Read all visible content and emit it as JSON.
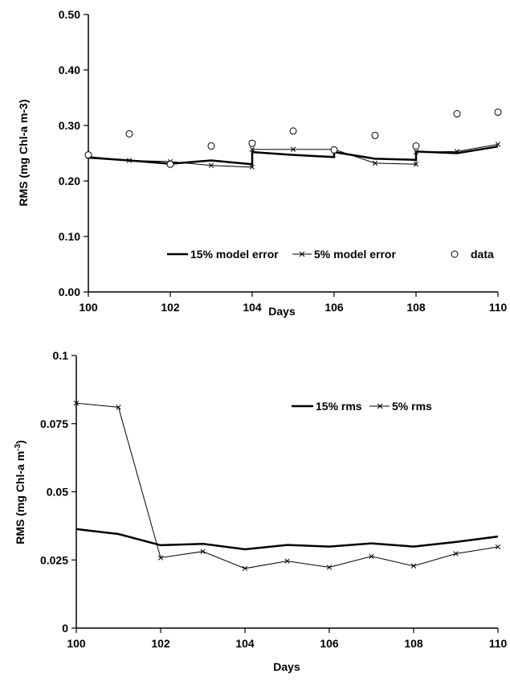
{
  "chart_data": [
    {
      "type": "line",
      "xlabel": "Days",
      "ylabel": "RMS (mg Chl-a m-3)",
      "xlim": [
        100,
        110
      ],
      "ylim": [
        0,
        0.5
      ],
      "x_ticks": [
        "100",
        "102",
        "104",
        "106",
        "108",
        "110"
      ],
      "y_ticks": [
        "0.00",
        "0.10",
        "0.20",
        "0.30",
        "0.40",
        "0.50"
      ],
      "legend": "bottom-right, inside plot",
      "series": [
        {
          "name": "15% model error",
          "style": "thick line",
          "points": [
            [
              100,
              0.242
            ],
            [
              101,
              0.237
            ],
            [
              102,
              0.231
            ],
            [
              103,
              0.237
            ],
            [
              104,
              0.23
            ],
            [
              104,
              0.252
            ],
            [
              105,
              0.247
            ],
            [
              106,
              0.243
            ],
            [
              106,
              0.252
            ],
            [
              107,
              0.24
            ],
            [
              108,
              0.238
            ],
            [
              108,
              0.253
            ],
            [
              109,
              0.25
            ],
            [
              110,
              0.262
            ]
          ]
        },
        {
          "name": "5% model error",
          "style": "thin line with x markers",
          "points": [
            [
              100,
              0.244
            ],
            [
              101,
              0.237
            ],
            [
              102,
              0.235
            ],
            [
              103,
              0.228
            ],
            [
              104,
              0.225
            ],
            [
              104,
              0.257
            ],
            [
              105,
              0.257
            ],
            [
              106,
              0.257
            ],
            [
              107,
              0.232
            ],
            [
              108,
              0.23
            ],
            [
              108,
              0.252
            ],
            [
              109,
              0.253
            ],
            [
              110,
              0.266
            ]
          ]
        },
        {
          "name": "data",
          "style": "open circle markers",
          "points": [
            [
              100,
              0.247
            ],
            [
              101,
              0.285
            ],
            [
              102,
              0.23
            ],
            [
              103,
              0.263
            ],
            [
              104,
              0.268
            ],
            [
              105,
              0.29
            ],
            [
              106,
              0.256
            ],
            [
              107,
              0.282
            ],
            [
              108,
              0.263
            ],
            [
              109,
              0.321
            ],
            [
              110,
              0.324
            ]
          ]
        }
      ]
    },
    {
      "type": "line",
      "xlabel": "Days",
      "ylabel_main": "RMS (mg Chl-a m",
      "ylabel_sup": "-3",
      "ylabel_end": ")",
      "xlim": [
        100,
        110
      ],
      "ylim": [
        0,
        0.1
      ],
      "x_ticks": [
        "100",
        "102",
        "104",
        "106",
        "108",
        "110"
      ],
      "y_ticks": [
        "0",
        "0.025",
        "0.05",
        "0.075",
        "0.1"
      ],
      "legend": "top-right, inside plot",
      "series": [
        {
          "name": "15% rms",
          "style": "thick line",
          "points": [
            [
              100,
              0.0363
            ],
            [
              101,
              0.0345
            ],
            [
              102,
              0.0304
            ],
            [
              103,
              0.0309
            ],
            [
              104,
              0.0289
            ],
            [
              105,
              0.0305
            ],
            [
              106,
              0.0299
            ],
            [
              107,
              0.0311
            ],
            [
              108,
              0.0299
            ],
            [
              109,
              0.0316
            ],
            [
              110,
              0.0336
            ]
          ]
        },
        {
          "name": "5% rms",
          "style": "thin line with x markers",
          "points": [
            [
              100,
              0.0825
            ],
            [
              101,
              0.081
            ],
            [
              102,
              0.0258
            ],
            [
              103,
              0.0281
            ],
            [
              104,
              0.0219
            ],
            [
              105,
              0.0246
            ],
            [
              106,
              0.0223
            ],
            [
              107,
              0.0263
            ],
            [
              108,
              0.0228
            ],
            [
              109,
              0.0273
            ],
            [
              110,
              0.0298
            ]
          ]
        }
      ]
    }
  ]
}
